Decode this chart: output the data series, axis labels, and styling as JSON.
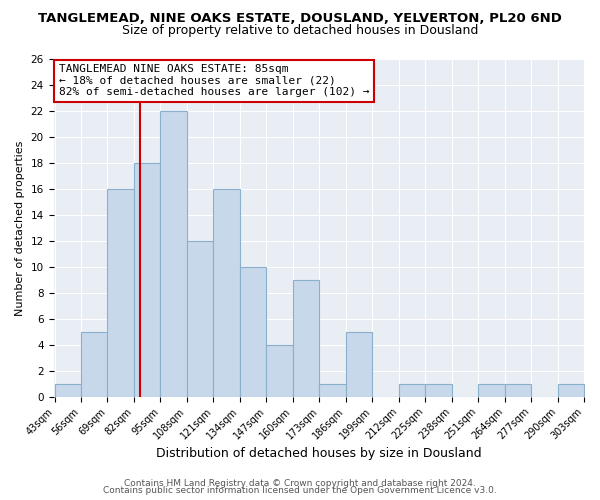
{
  "title": "TANGLEMEAD, NINE OAKS ESTATE, DOUSLAND, YELVERTON, PL20 6ND",
  "subtitle": "Size of property relative to detached houses in Dousland",
  "xlabel": "Distribution of detached houses by size in Dousland",
  "ylabel": "Number of detached properties",
  "bar_edges": [
    43,
    56,
    69,
    82,
    95,
    108,
    121,
    134,
    147,
    160,
    173,
    186,
    199,
    212,
    225,
    238,
    251,
    264,
    277,
    290,
    303
  ],
  "bar_heights": [
    1,
    5,
    16,
    18,
    22,
    12,
    16,
    10,
    4,
    9,
    1,
    5,
    0,
    1,
    1,
    0,
    1,
    1,
    0,
    1
  ],
  "bar_color": "#c8d8eb",
  "bar_edgecolor": "#8ab0cc",
  "vline_x": 85,
  "vline_color": "#cc0000",
  "ylim": [
    0,
    26
  ],
  "yticks": [
    0,
    2,
    4,
    6,
    8,
    10,
    12,
    14,
    16,
    18,
    20,
    22,
    24,
    26
  ],
  "annotation_title": "TANGLEMEAD NINE OAKS ESTATE: 85sqm",
  "annotation_line1": "← 18% of detached houses are smaller (22)",
  "annotation_line2": "82% of semi-detached houses are larger (102) →",
  "annotation_box_color": "#ffffff",
  "annotation_box_edgecolor": "#cc0000",
  "footer1": "Contains HM Land Registry data © Crown copyright and database right 2024.",
  "footer2": "Contains public sector information licensed under the Open Government Licence v3.0.",
  "title_fontsize": 9.5,
  "subtitle_fontsize": 9,
  "xlabel_fontsize": 9,
  "ylabel_fontsize": 8,
  "annotation_fontsize": 8,
  "footer_fontsize": 6.5,
  "plot_bg_color": "#e8eef4",
  "fig_bg_color": "#ffffff",
  "grid_color": "#ffffff"
}
